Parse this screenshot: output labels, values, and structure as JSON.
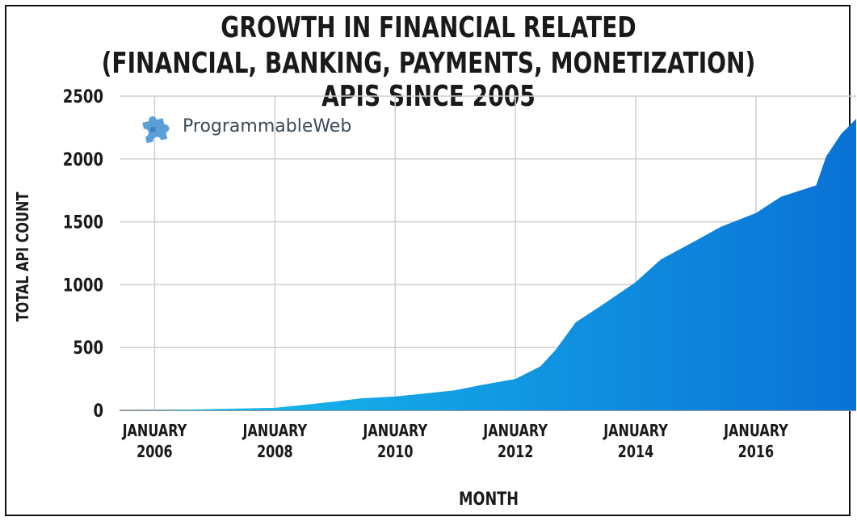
{
  "chart_data": {
    "type": "area",
    "title_line1": "GROWTH IN FINANCIAL RELATED",
    "title_line2": "(FINANCIAL, BANKING, PAYMENTS, MONETIZATION) APIS SINCE 2005",
    "xlabel": "MONTH",
    "ylabel": "TOTAL API COUNT",
    "ylim": [
      0,
      2500
    ],
    "yticks": [
      0,
      500,
      1000,
      1500,
      2000,
      2500
    ],
    "xlim": [
      "2005-06",
      "2017-09"
    ],
    "xticks": [
      {
        "date": "2006-01",
        "line1": "JANUARY",
        "line2": "2006"
      },
      {
        "date": "2008-01",
        "line1": "JANUARY",
        "line2": "2008"
      },
      {
        "date": "2010-01",
        "line1": "JANUARY",
        "line2": "2010"
      },
      {
        "date": "2012-01",
        "line1": "JANUARY",
        "line2": "2012"
      },
      {
        "date": "2014-01",
        "line1": "JANUARY",
        "line2": "2014"
      },
      {
        "date": "2016-01",
        "line1": "JANUARY",
        "line2": "2016"
      }
    ],
    "grid": true,
    "series": [
      {
        "color_start": "#19c3ef",
        "color_end": "#0a72d6",
        "points": [
          [
            "2005-06",
            0
          ],
          [
            "2006-01",
            2
          ],
          [
            "2006-06",
            5
          ],
          [
            "2007-01",
            10
          ],
          [
            "2007-06",
            15
          ],
          [
            "2008-01",
            20
          ],
          [
            "2008-06",
            40
          ],
          [
            "2009-01",
            70
          ],
          [
            "2009-06",
            95
          ],
          [
            "2010-01",
            110
          ],
          [
            "2010-06",
            130
          ],
          [
            "2011-01",
            160
          ],
          [
            "2011-06",
            200
          ],
          [
            "2012-01",
            250
          ],
          [
            "2012-06",
            350
          ],
          [
            "2012-09",
            480
          ],
          [
            "2013-01",
            700
          ],
          [
            "2013-06",
            830
          ],
          [
            "2014-01",
            1020
          ],
          [
            "2014-06",
            1200
          ],
          [
            "2015-01",
            1350
          ],
          [
            "2015-06",
            1460
          ],
          [
            "2016-01",
            1570
          ],
          [
            "2016-06",
            1700
          ],
          [
            "2017-01",
            1790
          ],
          [
            "2017-03",
            2020
          ],
          [
            "2017-06",
            2200
          ],
          [
            "2017-09",
            2320
          ]
        ]
      }
    ]
  },
  "logo": {
    "text": "ProgrammableWeb",
    "icon": "puzzle-piece-icon"
  }
}
